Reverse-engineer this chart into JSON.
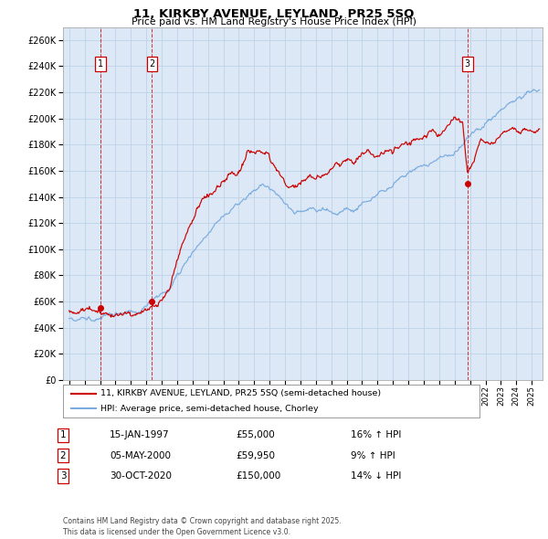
{
  "title": "11, KIRKBY AVENUE, LEYLAND, PR25 5SQ",
  "subtitle": "Price paid vs. HM Land Registry's House Price Index (HPI)",
  "price_paid_color": "#cc0000",
  "hpi_color": "#7aace0",
  "background_color": "#dce8f5",
  "grid_color": "#b8cfe8",
  "ylim": [
    0,
    270000
  ],
  "yticks": [
    0,
    20000,
    40000,
    60000,
    80000,
    100000,
    120000,
    140000,
    160000,
    180000,
    200000,
    220000,
    240000,
    260000
  ],
  "xlim": [
    1994.6,
    2025.7
  ],
  "transactions": [
    {
      "label": "1",
      "date": "15-JAN-1997",
      "price": "£55,000",
      "hpi_diff": "16% ↑ HPI",
      "year": 1997.04,
      "value": 55000
    },
    {
      "label": "2",
      "date": "05-MAY-2000",
      "price": "£59,950",
      "hpi_diff": "9% ↑ HPI",
      "year": 2000.37,
      "value": 59950
    },
    {
      "label": "3",
      "date": "30-OCT-2020",
      "price": "£150,000",
      "hpi_diff": "14% ↓ HPI",
      "year": 2020.83,
      "value": 150000
    }
  ],
  "legend_line1": "11, KIRKBY AVENUE, LEYLAND, PR25 5SQ (semi-detached house)",
  "legend_line2": "HPI: Average price, semi-detached house, Chorley",
  "footer": "Contains HM Land Registry data © Crown copyright and database right 2025.\nThis data is licensed under the Open Government Licence v3.0."
}
